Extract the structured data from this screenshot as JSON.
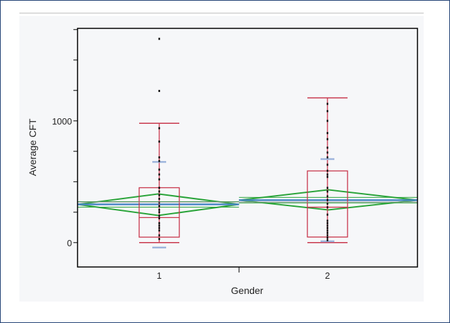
{
  "chart_data": {
    "type": "box",
    "xlabel": "Gender",
    "ylabel": "Average CFT",
    "categories": [
      "1",
      "2"
    ],
    "ylim": [
      -200,
      1760
    ],
    "yticks_labeled": [
      0,
      1000
    ],
    "yticks_minor_step": 250,
    "grid": false,
    "group_share": [
      0.475,
      0.525
    ],
    "groups": [
      {
        "category": "1",
        "whisker_low": 0,
        "q1": 45,
        "median": 206,
        "q3": 451,
        "whisker_high": 980,
        "mean": 314,
        "mean_ci": [
          223,
          400
        ],
        "sd_marks": [
          -40,
          663
        ],
        "points": [
          1674,
          1246,
          940,
          830,
          700,
          670,
          600,
          560,
          520,
          450,
          420,
          390,
          360,
          330,
          300,
          270,
          250,
          220,
          200,
          160,
          140,
          120,
          100,
          60,
          30
        ]
      },
      {
        "category": "2",
        "whisker_low": 0,
        "q1": 46,
        "median": 291,
        "q3": 589,
        "whisker_high": 1189,
        "mean": 349,
        "mean_ci": [
          269,
          434
        ],
        "sd_marks": [
          11,
          686
        ],
        "points": [
          1140,
          1080,
          1000,
          900,
          850,
          780,
          740,
          700,
          640,
          590,
          560,
          540,
          450,
          420,
          380,
          350,
          320,
          290,
          230,
          180,
          160,
          140,
          120,
          100,
          80,
          60,
          40,
          20
        ]
      }
    ],
    "grand_mean": 333,
    "colors": {
      "box": "#c8354a",
      "diamond": "#2aa43a",
      "mean_line": "#4a86c5",
      "sd": "#9db4dc",
      "points": "#111111",
      "grand_mean": "#999999"
    }
  }
}
